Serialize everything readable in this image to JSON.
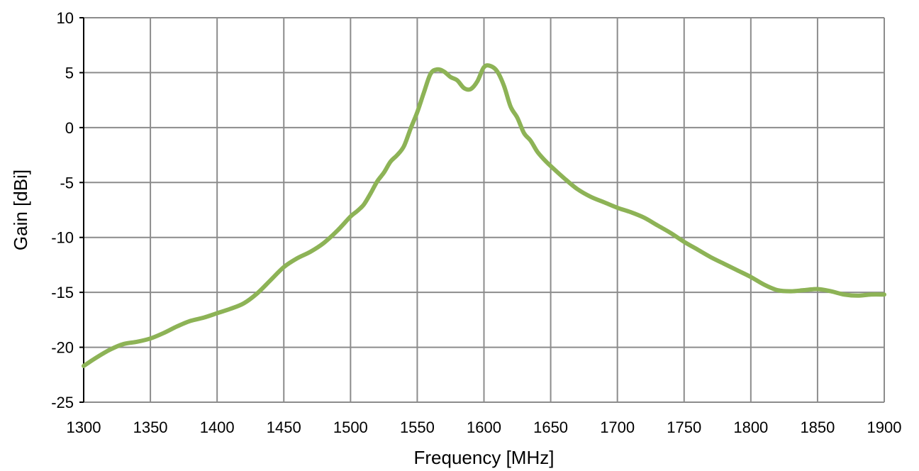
{
  "chart_data": {
    "type": "line",
    "xlabel": "Frequency [MHz]",
    "ylabel": "Gain [dBi]",
    "xlim": [
      1300,
      1900
    ],
    "ylim": [
      -25,
      10
    ],
    "xticks": [
      1300,
      1350,
      1400,
      1450,
      1500,
      1550,
      1600,
      1650,
      1700,
      1750,
      1800,
      1850,
      1900
    ],
    "yticks": [
      10,
      5,
      0,
      -5,
      -10,
      -15,
      -20,
      -25
    ],
    "grid": true,
    "series": [
      {
        "color": "#8db356",
        "x": [
          1300,
          1310,
          1320,
          1330,
          1340,
          1350,
          1360,
          1370,
          1380,
          1390,
          1400,
          1410,
          1420,
          1430,
          1440,
          1450,
          1460,
          1470,
          1480,
          1490,
          1500,
          1505,
          1510,
          1515,
          1520,
          1525,
          1530,
          1535,
          1540,
          1545,
          1550,
          1555,
          1560,
          1565,
          1570,
          1575,
          1580,
          1585,
          1590,
          1595,
          1600,
          1605,
          1610,
          1615,
          1620,
          1625,
          1630,
          1635,
          1640,
          1645,
          1650,
          1660,
          1670,
          1680,
          1690,
          1700,
          1710,
          1720,
          1730,
          1740,
          1750,
          1760,
          1770,
          1780,
          1790,
          1800,
          1810,
          1820,
          1830,
          1840,
          1850,
          1860,
          1870,
          1880,
          1890,
          1900
        ],
        "values": [
          -21.7,
          -20.9,
          -20.2,
          -19.7,
          -19.5,
          -19.2,
          -18.7,
          -18.1,
          -17.6,
          -17.3,
          -16.9,
          -16.5,
          -16.0,
          -15.1,
          -13.9,
          -12.7,
          -11.9,
          -11.3,
          -10.5,
          -9.4,
          -8.1,
          -7.6,
          -7.0,
          -6.0,
          -4.9,
          -4.1,
          -3.1,
          -2.5,
          -1.7,
          -0.1,
          1.4,
          3.2,
          4.9,
          5.3,
          5.1,
          4.6,
          4.3,
          3.6,
          3.5,
          4.2,
          5.5,
          5.6,
          5.1,
          3.8,
          1.9,
          0.9,
          -0.5,
          -1.2,
          -2.2,
          -2.9,
          -3.5,
          -4.6,
          -5.6,
          -6.3,
          -6.8,
          -7.3,
          -7.7,
          -8.2,
          -8.9,
          -9.6,
          -10.4,
          -11.1,
          -11.8,
          -12.4,
          -13.0,
          -13.6,
          -14.3,
          -14.8,
          -14.9,
          -14.8,
          -14.7,
          -14.9,
          -15.2,
          -15.3,
          -15.2,
          -15.2
        ]
      }
    ]
  }
}
